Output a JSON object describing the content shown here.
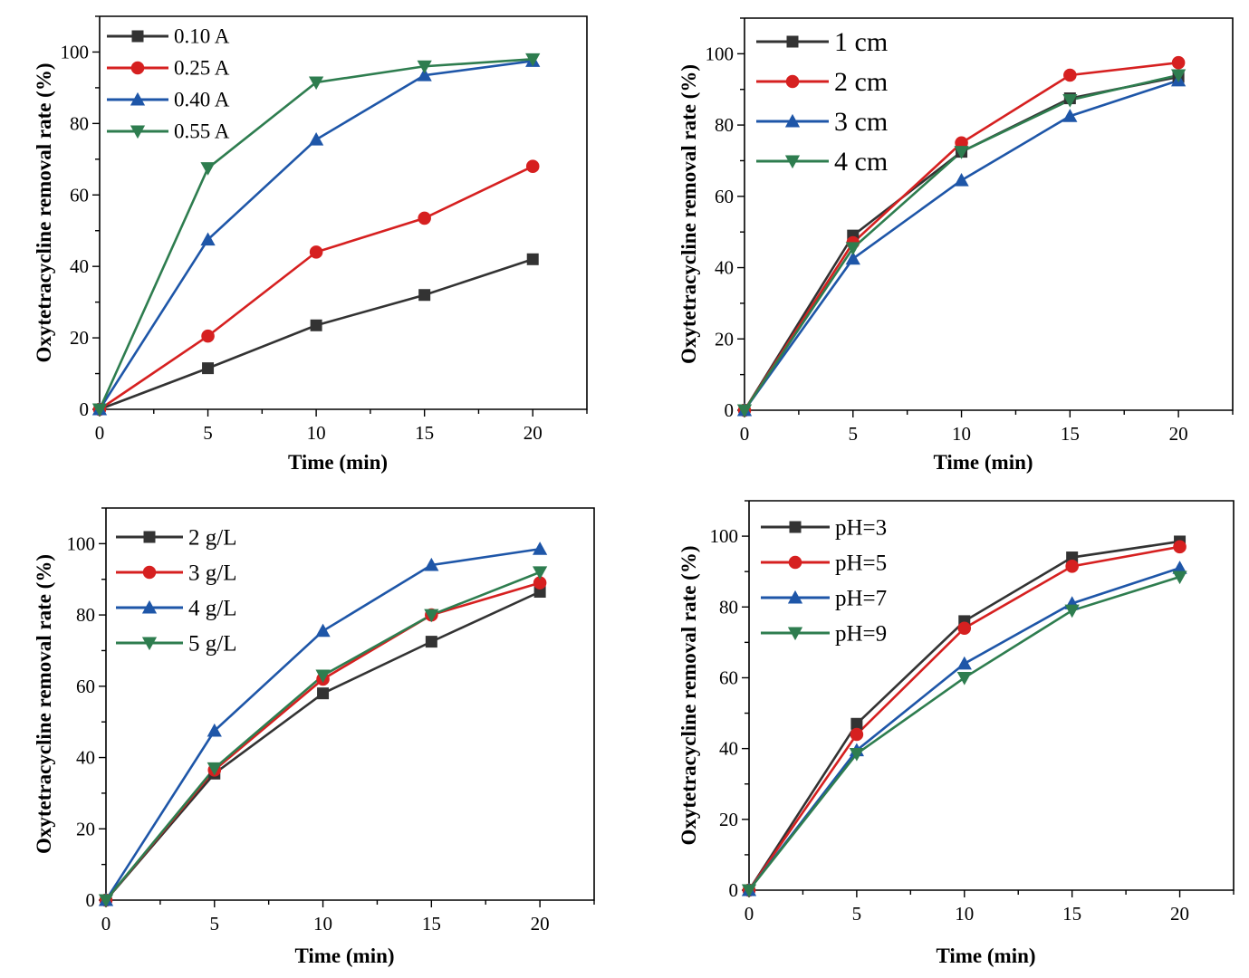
{
  "chart_data": [
    {
      "type": "line",
      "title": "",
      "xlabel": "Time (min)",
      "ylabel": "Oxytetracycline removal rate (%)",
      "x": [
        0,
        5,
        10,
        15,
        20
      ],
      "xlim": [
        0,
        22.5
      ],
      "ylim": [
        0,
        110
      ],
      "xticks": [
        "0",
        "5",
        "10",
        "15",
        "20"
      ],
      "yticks": [
        "0",
        "20",
        "40",
        "60",
        "80",
        "100"
      ],
      "legend_position": "top-left",
      "series": [
        {
          "name": "0.10 A",
          "color": "#333333",
          "marker": "square",
          "values": [
            0,
            11.5,
            23.5,
            32,
            42
          ]
        },
        {
          "name": "0.25 A",
          "color": "#d62020",
          "marker": "circle",
          "values": [
            0,
            20.5,
            44,
            53.5,
            68
          ]
        },
        {
          "name": "0.40 A",
          "color": "#1e56a8",
          "marker": "triangle-up",
          "values": [
            0,
            47.5,
            75.5,
            93.5,
            97.5
          ]
        },
        {
          "name": "0.55 A",
          "color": "#2e7d4f",
          "marker": "triangle-down",
          "values": [
            0,
            67.5,
            91.5,
            96,
            98
          ]
        }
      ]
    },
    {
      "type": "line",
      "title": "",
      "xlabel": "Time (min)",
      "ylabel": "Oxytetracycline removal rate (%)",
      "x": [
        0,
        5,
        10,
        15,
        20
      ],
      "xlim": [
        0,
        22.5
      ],
      "ylim": [
        0,
        110
      ],
      "xticks": [
        "0",
        "5",
        "10",
        "15",
        "20"
      ],
      "yticks": [
        "0",
        "20",
        "40",
        "60",
        "80",
        "100"
      ],
      "legend_position": "top-left",
      "series": [
        {
          "name": "1 cm",
          "color": "#333333",
          "marker": "square",
          "values": [
            0,
            49,
            72.5,
            87.5,
            93.5
          ]
        },
        {
          "name": "2 cm",
          "color": "#d62020",
          "marker": "circle",
          "values": [
            0,
            47,
            75,
            94,
            97.5
          ]
        },
        {
          "name": "3 cm",
          "color": "#1e56a8",
          "marker": "triangle-up",
          "values": [
            0,
            42.5,
            64.5,
            82.5,
            92.5
          ]
        },
        {
          "name": "4 cm",
          "color": "#2e7d4f",
          "marker": "triangle-down",
          "values": [
            0,
            45.5,
            72.5,
            87,
            94
          ]
        }
      ]
    },
    {
      "type": "line",
      "title": "",
      "xlabel": "Time (min)",
      "ylabel": "Oxytetracycline removal rate (%)",
      "x": [
        0,
        5,
        10,
        15,
        20
      ],
      "xlim": [
        0,
        22.5
      ],
      "ylim": [
        0,
        110
      ],
      "xticks": [
        "0",
        "5",
        "10",
        "15",
        "20"
      ],
      "yticks": [
        "0",
        "20",
        "40",
        "60",
        "80",
        "100"
      ],
      "legend_position": "top-left",
      "series": [
        {
          "name": "2 g/L",
          "color": "#333333",
          "marker": "square",
          "values": [
            0,
            35.5,
            58,
            72.5,
            86.5
          ]
        },
        {
          "name": "3 g/L",
          "color": "#d62020",
          "marker": "circle",
          "values": [
            0,
            36.5,
            62,
            80,
            89
          ]
        },
        {
          "name": "4 g/L",
          "color": "#1e56a8",
          "marker": "triangle-up",
          "values": [
            0,
            47.5,
            75.5,
            94,
            98.5
          ]
        },
        {
          "name": "5 g/L",
          "color": "#2e7d4f",
          "marker": "triangle-down",
          "values": [
            0,
            37,
            63,
            80,
            92
          ]
        }
      ]
    },
    {
      "type": "line",
      "title": "",
      "xlabel": "Time (min)",
      "ylabel": "Oxytetracycline removal rate (%)",
      "x": [
        0,
        5,
        10,
        15,
        20
      ],
      "xlim": [
        0,
        22.5
      ],
      "ylim": [
        0,
        110
      ],
      "xticks": [
        "0",
        "5",
        "10",
        "15",
        "20"
      ],
      "yticks": [
        "0",
        "20",
        "40",
        "60",
        "80",
        "100"
      ],
      "legend_position": "top-left",
      "series": [
        {
          "name": "pH=3",
          "color": "#333333",
          "marker": "square",
          "values": [
            0,
            47,
            76,
            94,
            98.5
          ]
        },
        {
          "name": "pH=5",
          "color": "#d62020",
          "marker": "circle",
          "values": [
            0,
            44,
            74,
            91.5,
            97
          ]
        },
        {
          "name": "pH=7",
          "color": "#1e56a8",
          "marker": "triangle-up",
          "values": [
            0,
            39.5,
            64,
            81,
            91
          ]
        },
        {
          "name": "pH=9",
          "color": "#2e7d4f",
          "marker": "triangle-down",
          "values": [
            0,
            38.5,
            60,
            79,
            88.5
          ]
        }
      ]
    }
  ]
}
